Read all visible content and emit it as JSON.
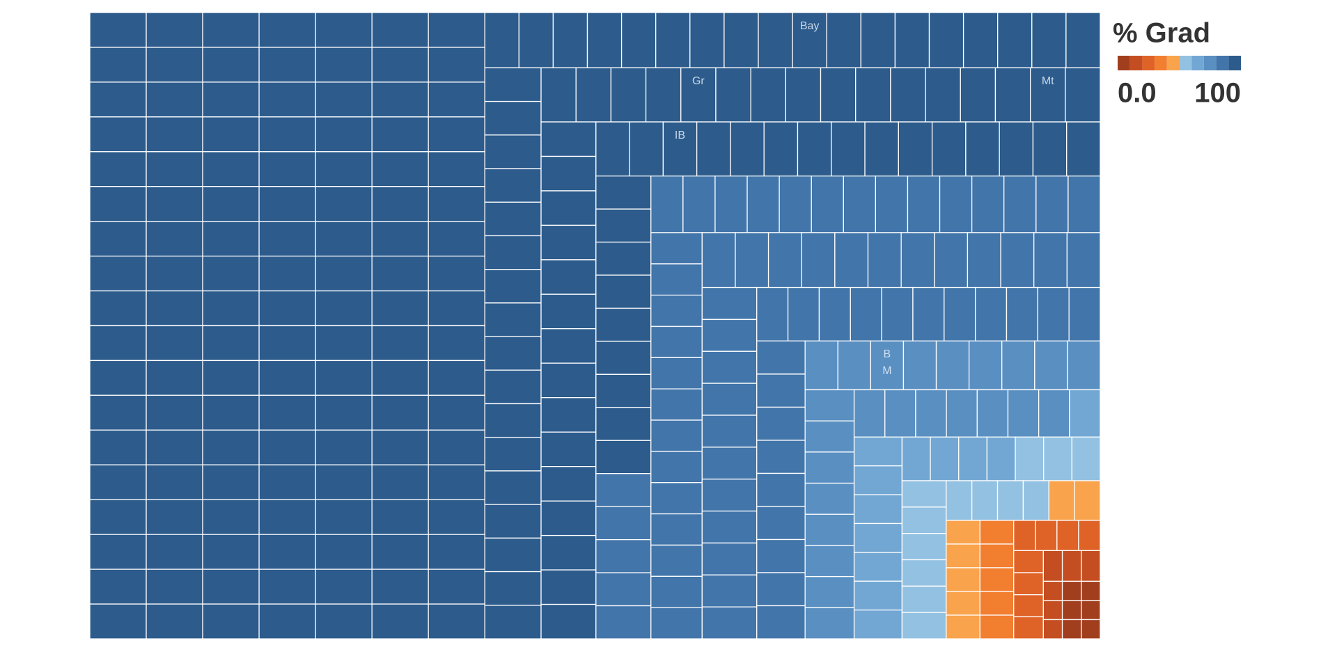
{
  "chart_data": {
    "type": "treemap",
    "legend_title": "% Grad",
    "colorticks": [
      {
        "value": 0,
        "label": "0.0"
      },
      100
    ],
    "colors": [
      "#a13e1d",
      "#c44e21",
      "#df6227",
      "#f27e30",
      "#f9a34c",
      "#93c1e1",
      "#72a7d3",
      "#5a8fc2",
      "#4275aa",
      "#2c5b8c"
    ],
    "categories": [
      null,
      null,
      null,
      null,
      null,
      null,
      null,
      null,
      null,
      null,
      null,
      null,
      null,
      null,
      null,
      null,
      null,
      null,
      null,
      null,
      null,
      null,
      null,
      null,
      null,
      null,
      null,
      null,
      null,
      null,
      null,
      null,
      null,
      null,
      null,
      null,
      null,
      null,
      null,
      null,
      null,
      null,
      null,
      null,
      null,
      null,
      null,
      null,
      null,
      null,
      null,
      null,
      null,
      null,
      null,
      null,
      null,
      null,
      null,
      null,
      null,
      null,
      null,
      null,
      null,
      null,
      null,
      null,
      null,
      null,
      null,
      null,
      null,
      null,
      null,
      null,
      null,
      null,
      null,
      null,
      null,
      null,
      null,
      null,
      null,
      null,
      null,
      null,
      null,
      null,
      null,
      null,
      null,
      null,
      null,
      null,
      null,
      null,
      null,
      null,
      null,
      null,
      null,
      null,
      null,
      null,
      null,
      null,
      null,
      null,
      null,
      null,
      null,
      null,
      null,
      null,
      null,
      null,
      null,
      null,
      null,
      null,
      null,
      null,
      null,
      null,
      null,
      null,
      null,
      null,
      null,
      null,
      null,
      null,
      null,
      "Bay",
      null,
      null,
      null,
      null,
      null,
      null,
      null,
      null,
      null,
      null,
      null,
      null,
      null,
      null,
      null,
      null,
      null,
      null,
      null,
      null,
      null,
      null,
      null,
      null,
      null,
      null,
      null,
      null,
      null,
      "Gr",
      null,
      null,
      null,
      null,
      null,
      null,
      null,
      null,
      null,
      "Mt",
      null,
      null,
      null,
      null,
      null,
      null,
      null,
      null,
      null,
      null,
      null,
      null,
      null,
      null,
      null,
      null,
      null,
      null,
      "IB",
      null,
      null,
      null,
      null,
      null,
      null,
      null,
      null,
      null,
      null,
      null,
      null,
      null,
      null,
      null,
      null,
      null,
      null,
      null,
      null,
      null,
      null,
      null,
      null,
      null,
      null,
      null,
      null,
      null,
      null,
      null,
      null,
      null,
      null,
      null,
      null,
      null,
      null,
      null,
      null,
      null,
      null,
      null,
      null,
      null,
      null,
      null,
      null,
      null,
      null,
      null,
      null,
      null,
      null,
      null,
      null,
      null,
      null,
      null,
      null,
      null,
      null,
      null,
      null,
      null,
      null,
      null,
      null,
      null,
      null,
      null,
      null,
      null,
      null,
      null,
      null,
      null,
      null,
      null,
      null,
      null,
      null,
      null,
      null,
      null,
      null,
      null,
      null,
      null,
      null,
      null,
      null,
      null,
      null,
      null,
      null,
      null,
      null,
      "B M",
      null,
      null,
      null,
      null,
      null,
      null,
      null,
      null,
      null,
      null,
      null,
      null,
      null,
      null,
      null,
      null,
      null,
      null,
      null,
      null,
      null,
      null,
      null,
      null,
      null,
      null,
      null,
      null,
      null,
      null,
      null,
      null,
      null,
      null,
      null,
      null,
      null,
      null,
      null,
      null,
      null,
      null,
      null,
      null,
      null,
      null,
      null,
      null,
      null,
      null,
      null,
      null,
      null,
      null,
      null,
      null,
      null,
      null,
      null,
      null,
      null,
      null,
      null,
      null,
      null,
      null,
      null,
      null,
      null,
      null,
      null,
      null,
      null,
      null,
      null,
      null,
      null,
      null
    ],
    "values": [
      100,
      100,
      100,
      100,
      100,
      100,
      100,
      100,
      100,
      100,
      100,
      100,
      100,
      100,
      100,
      100,
      100,
      100,
      100,
      100,
      100,
      100,
      100,
      100,
      100,
      100,
      100,
      100,
      100,
      100,
      100,
      100,
      100,
      100,
      100,
      100,
      99,
      99,
      99,
      99,
      99,
      99,
      99,
      99,
      99,
      99,
      99,
      99,
      99,
      99,
      99,
      99,
      99,
      99,
      99,
      99,
      99,
      99,
      99,
      99,
      99,
      99,
      99,
      99,
      99,
      99,
      99,
      99,
      99,
      99,
      99,
      99,
      99,
      99,
      99,
      99,
      99,
      99,
      99,
      99,
      99,
      99,
      99,
      99,
      99,
      99,
      99,
      99,
      99,
      99,
      98,
      98,
      98,
      98,
      98,
      98,
      98,
      98,
      98,
      98,
      98,
      98,
      98,
      98,
      98,
      98,
      98,
      98,
      98,
      98,
      98,
      98,
      98,
      98,
      98,
      98,
      98,
      98,
      98,
      98,
      98,
      98,
      98,
      98,
      98,
      98,
      97,
      97,
      97,
      97,
      97,
      97,
      97,
      97,
      97,
      97,
      97,
      97,
      97,
      97,
      97,
      97,
      97,
      97,
      97,
      97,
      97,
      97,
      97,
      97,
      97,
      97,
      97,
      97,
      97,
      97,
      97,
      97,
      97,
      97,
      97,
      96,
      96,
      96,
      96,
      96,
      96,
      96,
      96,
      96,
      96,
      96,
      96,
      96,
      96,
      96,
      96,
      96,
      96,
      96,
      96,
      96,
      96,
      96,
      96,
      96,
      96,
      96,
      96,
      96,
      96,
      96,
      95,
      95,
      95,
      95,
      95,
      95,
      95,
      95,
      95,
      95,
      95,
      95,
      95,
      95,
      95,
      93,
      93,
      93,
      93,
      93,
      93,
      93,
      93,
      93,
      89,
      89,
      89,
      89,
      89,
      88,
      88,
      88,
      88,
      88,
      88,
      88,
      88,
      88,
      88,
      88,
      88,
      88,
      88,
      87,
      87,
      87,
      87,
      87,
      87,
      87,
      87,
      87,
      87,
      87,
      87,
      87,
      86,
      86,
      86,
      86,
      86,
      86,
      86,
      86,
      86,
      86,
      86,
      86,
      85,
      85,
      85,
      85,
      85,
      85,
      85,
      85,
      85,
      85,
      85,
      84,
      84,
      84,
      84,
      84,
      84,
      84,
      84,
      84,
      84,
      84,
      81,
      81,
      81,
      81,
      81,
      81,
      81,
      81,
      81,
      78,
      78,
      78,
      78,
      78,
      78,
      78,
      78,
      78,
      76,
      76,
      76,
      76,
      76,
      76,
      76,
      76,
      74,
      74,
      74,
      74,
      74,
      74,
      74,
      69,
      68,
      68,
      68,
      68,
      68,
      68,
      68,
      67,
      66,
      65,
      63,
      58,
      57,
      56,
      55,
      55,
      54,
      54,
      53,
      53,
      52,
      52,
      51,
      51,
      47,
      46,
      45,
      45,
      45,
      45,
      45,
      38,
      38,
      38,
      38,
      38,
      29,
      28,
      27,
      26,
      25,
      24,
      23,
      22,
      18,
      16,
      15,
      13,
      12,
      11,
      9,
      8,
      6,
      5,
      3,
      1
    ],
    "sizes": [
      27,
      27,
      27,
      27,
      27,
      27,
      27,
      27,
      27,
      27,
      27,
      27,
      27,
      27,
      27,
      27,
      27,
      27,
      27,
      27,
      27,
      27,
      27,
      27,
      27,
      27,
      27,
      27,
      27,
      27,
      27,
      27,
      27,
      27,
      27,
      27,
      27,
      27,
      27,
      27,
      27,
      27,
      27,
      27,
      27,
      27,
      27,
      27,
      27,
      27,
      27,
      27,
      27,
      27,
      27,
      27,
      27,
      27,
      27,
      27,
      27,
      27,
      27,
      27,
      27,
      27,
      27,
      27,
      27,
      27,
      27,
      27,
      27,
      27,
      27,
      27,
      27,
      27,
      27,
      27,
      27,
      27,
      27,
      27,
      27,
      27,
      27,
      27,
      27,
      27,
      27,
      27,
      27,
      27,
      27,
      27,
      27,
      27,
      27,
      27,
      27,
      27,
      27,
      27,
      27,
      27,
      27,
      27,
      27,
      27,
      27,
      27,
      27,
      27,
      27,
      27,
      27,
      27,
      27,
      27,
      27,
      27,
      27,
      27,
      27,
      27,
      26,
      26,
      26,
      26,
      26,
      26,
      26,
      26,
      26,
      26,
      26,
      26,
      26,
      26,
      26,
      26,
      26,
      26,
      26,
      26,
      26,
      26,
      26,
      26,
      26,
      26,
      26,
      26,
      26,
      26,
      26,
      26,
      26,
      26,
      26,
      26,
      26,
      26,
      26,
      26,
      26,
      26,
      26,
      26,
      26,
      26,
      26,
      26,
      26,
      26,
      26,
      26,
      26,
      26,
      26,
      26,
      26,
      26,
      26,
      26,
      26,
      26,
      26,
      26,
      26,
      26,
      25,
      25,
      25,
      25,
      25,
      25,
      25,
      25,
      25,
      25,
      25,
      25,
      25,
      25,
      25,
      25,
      25,
      25,
      25,
      25,
      25,
      25,
      25,
      25,
      25,
      25,
      25,
      25,
      25,
      25,
      25,
      25,
      25,
      25,
      25,
      25,
      25,
      25,
      25,
      25,
      25,
      25,
      25,
      22,
      22,
      22,
      22,
      22,
      22,
      22,
      22,
      22,
      22,
      22,
      22,
      22,
      25,
      25,
      25,
      25,
      25,
      25,
      25,
      25,
      25,
      25,
      25,
      25,
      24,
      24,
      24,
      24,
      24,
      24,
      24,
      24,
      24,
      24,
      24,
      23,
      23,
      23,
      23,
      23,
      23,
      23,
      23,
      23,
      23,
      23,
      22,
      22,
      22,
      22,
      22,
      22,
      22,
      22,
      22,
      22,
      22,
      22,
      22,
      22,
      22,
      22,
      22,
      22,
      21,
      21,
      21,
      21,
      21,
      21,
      21,
      21,
      20,
      20,
      20,
      20,
      20,
      20,
      20,
      20,
      19,
      19,
      19,
      19,
      19,
      19,
      19,
      17,
      17,
      17,
      17,
      17,
      17,
      17,
      16,
      16,
      16,
      16,
      16,
      16,
      14,
      14,
      14,
      14,
      14,
      14,
      11,
      11,
      11,
      11,
      11,
      11,
      11,
      11,
      11,
      11,
      9,
      9,
      9,
      9,
      9,
      9,
      9,
      9,
      8,
      8,
      8,
      5,
      5,
      5,
      5,
      5,
      5,
      5,
      5,
      5
    ]
  }
}
